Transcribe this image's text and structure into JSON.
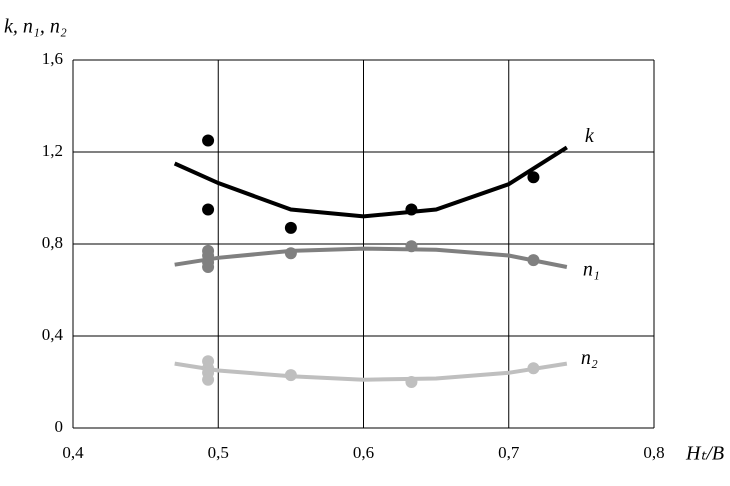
{
  "chart_data": {
    "type": "scatter",
    "y_label": "k, n₁, n₂",
    "x_label": "Hₜ/B",
    "xlim": [
      0.4,
      0.8
    ],
    "ylim": [
      0,
      1.6
    ],
    "xticks": [
      {
        "value": 0.4,
        "label": "0,4"
      },
      {
        "value": 0.5,
        "label": "0,5"
      },
      {
        "value": 0.6,
        "label": "0,6"
      },
      {
        "value": 0.7,
        "label": "0,7"
      },
      {
        "value": 0.8,
        "label": "0,8"
      }
    ],
    "yticks": [
      0,
      {
        "value": 0.4,
        "label": "0,4"
      },
      {
        "value": 0.8,
        "label": "0,8"
      },
      {
        "value": 1.2,
        "label": "1,2"
      },
      {
        "value": 1.6,
        "label": "1,6"
      }
    ],
    "grid": true,
    "series": [
      {
        "name": "k",
        "color": "#000000",
        "x": [
          0.493,
          0.493,
          0.55,
          0.633,
          0.717
        ],
        "values": [
          1.25,
          0.95,
          0.87,
          0.95,
          1.09
        ],
        "curve": {
          "x": [
            0.47,
            0.5,
            0.55,
            0.6,
            0.65,
            0.7,
            0.74
          ],
          "values": [
            1.15,
            1.065,
            0.95,
            0.92,
            0.95,
            1.06,
            1.22
          ]
        }
      },
      {
        "name": "n₁",
        "color": "#808080",
        "x": [
          0.493,
          0.493,
          0.493,
          0.493,
          0.55,
          0.633,
          0.717
        ],
        "values": [
          0.77,
          0.75,
          0.72,
          0.7,
          0.76,
          0.79,
          0.73
        ],
        "curve": {
          "x": [
            0.47,
            0.5,
            0.55,
            0.6,
            0.65,
            0.7,
            0.74
          ],
          "values": [
            0.71,
            0.74,
            0.77,
            0.78,
            0.775,
            0.75,
            0.7
          ]
        }
      },
      {
        "name": "n₂",
        "color": "#bfbfbf",
        "x": [
          0.493,
          0.493,
          0.493,
          0.493,
          0.55,
          0.633,
          0.717
        ],
        "values": [
          0.29,
          0.26,
          0.24,
          0.21,
          0.23,
          0.2,
          0.26
        ],
        "curve": {
          "x": [
            0.47,
            0.5,
            0.55,
            0.6,
            0.65,
            0.7,
            0.74
          ],
          "values": [
            0.28,
            0.25,
            0.225,
            0.21,
            0.215,
            0.24,
            0.28
          ]
        }
      }
    ]
  }
}
